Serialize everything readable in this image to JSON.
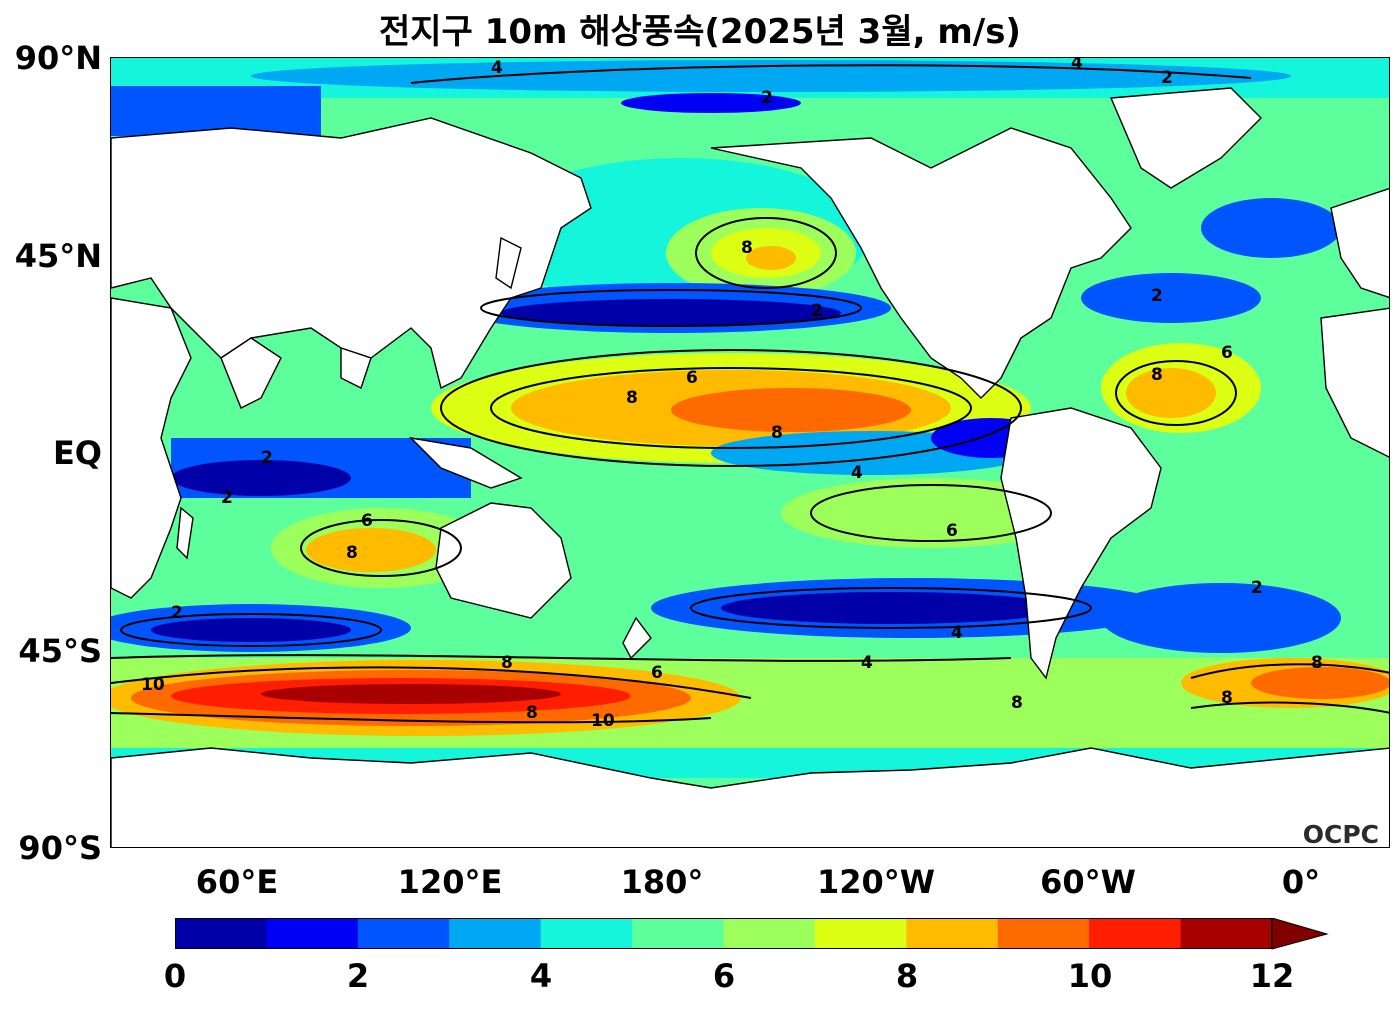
{
  "title": "전지구 10m 해상풍속(2025년 3월, m/s)",
  "logo": "OCPC",
  "y_ticks": [
    "90°N",
    "45°N",
    "EQ",
    "45°S",
    "90°S"
  ],
  "x_ticks": [
    "60°E",
    "120°E",
    "180°",
    "120°W",
    "60°W",
    "0°"
  ],
  "colorbar": {
    "labels": [
      "0",
      "2",
      "4",
      "6",
      "8",
      "10",
      "12"
    ],
    "colors": [
      "#0000a8",
      "#0000f5",
      "#0055ff",
      "#00a7f2",
      "#14f5dc",
      "#5cff9c",
      "#9cff5c",
      "#dcff14",
      "#ffbb00",
      "#ff6a00",
      "#ff1e00",
      "#a80000"
    ],
    "extend_color": "#800000"
  },
  "contour_labels": [
    "2",
    "4",
    "6",
    "8",
    "10"
  ],
  "palette": {
    "land": "#ffffff",
    "coast": "#000000",
    "contour": "#000000"
  }
}
